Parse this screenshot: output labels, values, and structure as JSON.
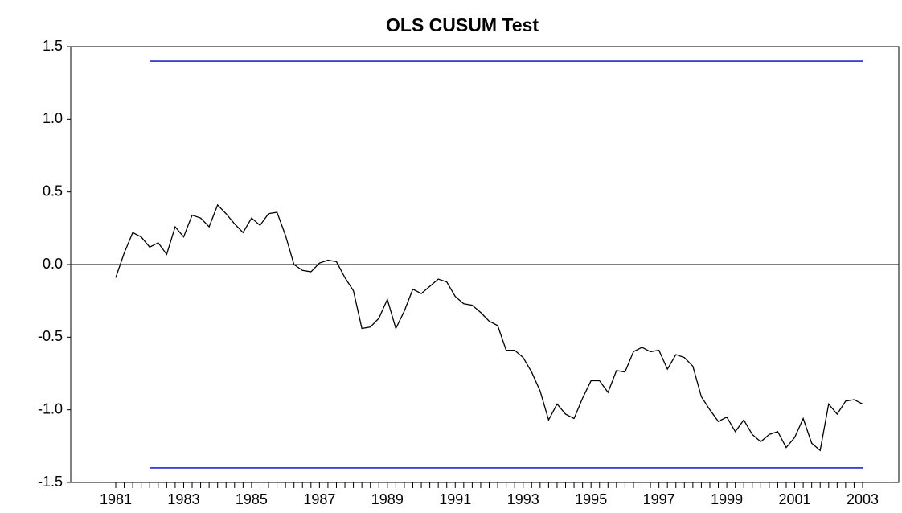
{
  "chart_data": {
    "type": "line",
    "title": "OLS CUSUM Test",
    "categories": [
      "1981",
      null,
      null,
      null,
      null,
      null,
      null,
      null,
      "1983",
      null,
      null,
      null,
      null,
      null,
      null,
      null,
      "1985",
      null,
      null,
      null,
      null,
      null,
      null,
      null,
      "1987",
      null,
      null,
      null,
      null,
      null,
      null,
      null,
      "1989",
      null,
      null,
      null,
      null,
      null,
      null,
      null,
      "1991",
      null,
      null,
      null,
      null,
      null,
      null,
      null,
      "1993",
      null,
      null,
      null,
      null,
      null,
      null,
      null,
      "1995",
      null,
      null,
      null,
      null,
      null,
      null,
      null,
      "1997",
      null,
      null,
      null,
      null,
      null,
      null,
      null,
      "1999",
      null,
      null,
      null,
      null,
      null,
      null,
      null,
      "2001",
      null,
      null,
      null,
      null,
      null,
      null,
      null,
      "2003"
    ],
    "series": [
      {
        "color": "#000000",
        "values": [
          -0.09,
          0.08,
          0.22,
          0.19,
          0.12,
          0.15,
          0.07,
          0.26,
          0.19,
          0.34,
          0.32,
          0.26,
          0.41,
          0.35,
          0.28,
          0.22,
          0.32,
          0.27,
          0.35,
          0.36,
          0.2,
          0.0,
          -0.04,
          -0.05,
          0.01,
          0.03,
          0.02,
          -0.09,
          -0.18,
          -0.44,
          -0.43,
          -0.37,
          -0.24,
          -0.44,
          -0.32,
          -0.17,
          -0.2,
          -0.15,
          -0.1,
          -0.12,
          -0.22,
          -0.27,
          -0.28,
          -0.33,
          -0.39,
          -0.42,
          -0.59,
          -0.59,
          -0.64,
          -0.74,
          -0.87,
          -1.07,
          -0.96,
          -1.03,
          -1.06,
          -0.92,
          -0.8,
          -0.8,
          -0.88,
          -0.73,
          -0.74,
          -0.6,
          -0.57,
          -0.6,
          -0.59,
          -0.72,
          -0.62,
          -0.64,
          -0.7,
          -0.91,
          -1.0,
          -1.08,
          -1.05,
          -1.15,
          -1.07,
          -1.17,
          -1.22,
          -1.17,
          -1.15,
          -1.26,
          -1.19,
          -1.06,
          -1.23,
          -1.28,
          -0.96,
          -1.03,
          -0.94,
          -0.93,
          -0.96
        ]
      },
      {
        "color": "#0000cc",
        "values": [
          null,
          null,
          null,
          null,
          1.4,
          1.4,
          1.4,
          1.4,
          1.4,
          1.4,
          1.4,
          1.4,
          1.4,
          1.4,
          1.4,
          1.4,
          1.4,
          1.4,
          1.4,
          1.4,
          1.4,
          1.4,
          1.4,
          1.4,
          1.4,
          1.4,
          1.4,
          1.4,
          1.4,
          1.4,
          1.4,
          1.4,
          1.4,
          1.4,
          1.4,
          1.4,
          1.4,
          1.4,
          1.4,
          1.4,
          1.4,
          1.4,
          1.4,
          1.4,
          1.4,
          1.4,
          1.4,
          1.4,
          1.4,
          1.4,
          1.4,
          1.4,
          1.4,
          1.4,
          1.4,
          1.4,
          1.4,
          1.4,
          1.4,
          1.4,
          1.4,
          1.4,
          1.4,
          1.4,
          1.4,
          1.4,
          1.4,
          1.4,
          1.4,
          1.4,
          1.4,
          1.4,
          1.4,
          1.4,
          1.4,
          1.4,
          1.4,
          1.4,
          1.4,
          1.4,
          1.4,
          1.4,
          1.4,
          1.4,
          1.4,
          1.4,
          1.4,
          1.4,
          1.4
        ]
      },
      {
        "color": "#0000cc",
        "values": [
          null,
          null,
          null,
          null,
          -1.4,
          -1.4,
          -1.4,
          -1.4,
          -1.4,
          -1.4,
          -1.4,
          -1.4,
          -1.4,
          -1.4,
          -1.4,
          -1.4,
          -1.4,
          -1.4,
          -1.4,
          -1.4,
          -1.4,
          -1.4,
          -1.4,
          -1.4,
          -1.4,
          -1.4,
          -1.4,
          -1.4,
          -1.4,
          -1.4,
          -1.4,
          -1.4,
          -1.4,
          -1.4,
          -1.4,
          -1.4,
          -1.4,
          -1.4,
          -1.4,
          -1.4,
          -1.4,
          -1.4,
          -1.4,
          -1.4,
          -1.4,
          -1.4,
          -1.4,
          -1.4,
          -1.4,
          -1.4,
          -1.4,
          -1.4,
          -1.4,
          -1.4,
          -1.4,
          -1.4,
          -1.4,
          -1.4,
          -1.4,
          -1.4,
          -1.4,
          -1.4,
          -1.4,
          -1.4,
          -1.4,
          -1.4,
          -1.4,
          -1.4,
          -1.4,
          -1.4,
          -1.4,
          -1.4,
          -1.4,
          -1.4,
          -1.4,
          -1.4,
          -1.4,
          -1.4,
          -1.4,
          -1.4,
          -1.4,
          -1.4,
          -1.4,
          -1.4,
          -1.4,
          -1.4,
          -1.4,
          -1.4,
          -1.4
        ]
      }
    ],
    "ylim": [
      -1.5,
      1.5
    ],
    "yticks": [
      -1.5,
      {
        "value": -1,
        "label": "-1.0"
      },
      -0.5,
      {
        "value": 0,
        "label": "0.0"
      },
      0.5,
      {
        "value": 1,
        "label": "1.0"
      },
      1.5
    ],
    "zero_line": true
  }
}
